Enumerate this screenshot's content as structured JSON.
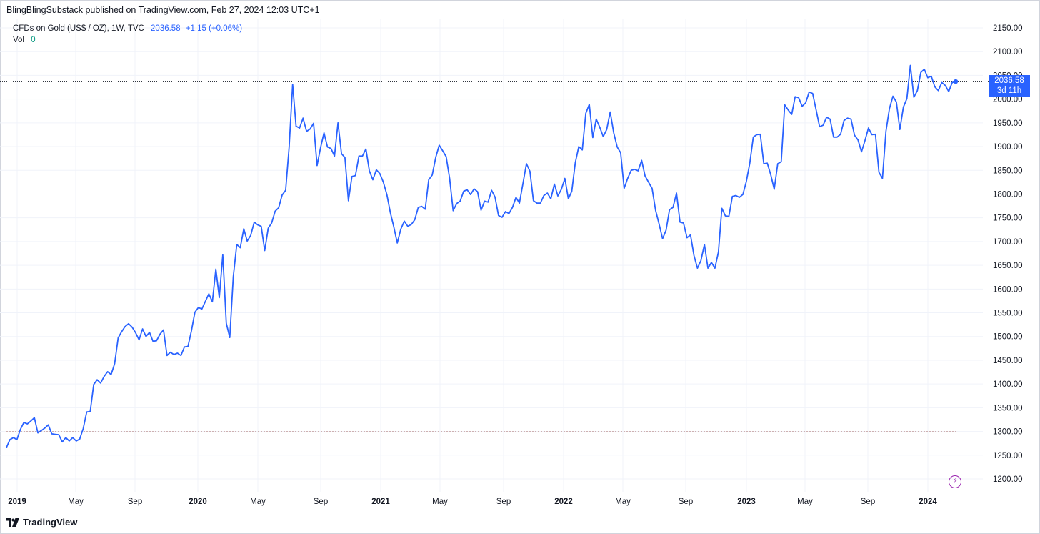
{
  "publisher_line": "BlingBlingSubstack published on TradingView.com, Feb 27, 2024 12:03 UTC+1",
  "legend": {
    "symbol": "CFDs on Gold (US$ / OZ), 1W, TVC",
    "last": "2036.58",
    "change": "+1.15 (+0.06%)",
    "vol_label": "Vol",
    "vol_value": "0"
  },
  "price_badge": {
    "price": "2036.58",
    "countdown": "3d 11h"
  },
  "brand": {
    "name": "TradingView"
  },
  "colors": {
    "line": "#2962ff",
    "grid": "#f0f3fa",
    "badge": "#2962ff",
    "up": "#089981",
    "alert": "#9c27b0"
  },
  "icons": {
    "alert": "lightning-alert-icon",
    "logo": "tradingview-logo-icon"
  },
  "chart_data": {
    "type": "line",
    "ylim": [
      1150,
      2160
    ],
    "y_ticks": [
      "1200.00",
      "1250.00",
      "1300.00",
      "1350.00",
      "1400.00",
      "1450.00",
      "1500.00",
      "1550.00",
      "1600.00",
      "1650.00",
      "1700.00",
      "1750.00",
      "1800.00",
      "1850.00",
      "1900.00",
      "1950.00",
      "2000.00",
      "2050.00",
      "2100.00",
      "2150.00"
    ],
    "x_ticks": [
      {
        "label": "2019",
        "bold": true
      },
      {
        "label": "May",
        "bold": false
      },
      {
        "label": "Sep",
        "bold": false
      },
      {
        "label": "2020",
        "bold": true
      },
      {
        "label": "May",
        "bold": false
      },
      {
        "label": "Sep",
        "bold": false
      },
      {
        "label": "2021",
        "bold": true
      },
      {
        "label": "May",
        "bold": false
      },
      {
        "label": "Sep",
        "bold": false
      },
      {
        "label": "2022",
        "bold": true
      },
      {
        "label": "May",
        "bold": false
      },
      {
        "label": "Sep",
        "bold": false
      },
      {
        "label": "2023",
        "bold": true
      },
      {
        "label": "May",
        "bold": false
      },
      {
        "label": "Sep",
        "bold": false
      },
      {
        "label": "2024",
        "bold": true
      }
    ],
    "last_price": 2036.58,
    "reference_price": 1300,
    "series": [
      {
        "values": [
          1266,
          1283,
          1287,
          1283,
          1304,
          1319,
          1316,
          1322,
          1329,
          1297,
          1302,
          1307,
          1314,
          1295,
          1294,
          1293,
          1278,
          1287,
          1280,
          1287,
          1280,
          1284,
          1306,
          1341,
          1342,
          1399,
          1409,
          1402,
          1416,
          1426,
          1420,
          1443,
          1497,
          1510,
          1521,
          1527,
          1520,
          1508,
          1493,
          1516,
          1500,
          1509,
          1490,
          1491,
          1505,
          1514,
          1460,
          1467,
          1462,
          1465,
          1460,
          1478,
          1479,
          1512,
          1551,
          1561,
          1558,
          1574,
          1590,
          1573,
          1642,
          1582,
          1672,
          1528,
          1498,
          1626,
          1694,
          1687,
          1727,
          1701,
          1713,
          1741,
          1735,
          1732,
          1681,
          1728,
          1739,
          1764,
          1771,
          1798,
          1808,
          1899,
          2031,
          1943,
          1939,
          1960,
          1932,
          1937,
          1949,
          1860,
          1897,
          1929,
          1899,
          1896,
          1880,
          1950,
          1885,
          1877,
          1786,
          1837,
          1839,
          1880,
          1880,
          1895,
          1849,
          1830,
          1851,
          1843,
          1825,
          1799,
          1761,
          1731,
          1697,
          1726,
          1743,
          1732,
          1736,
          1746,
          1772,
          1774,
          1768,
          1830,
          1840,
          1877,
          1903,
          1891,
          1879,
          1833,
          1765,
          1780,
          1785,
          1806,
          1809,
          1799,
          1811,
          1805,
          1766,
          1785,
          1783,
          1808,
          1794,
          1755,
          1751,
          1763,
          1759,
          1772,
          1793,
          1781,
          1822,
          1864,
          1848,
          1786,
          1781,
          1781,
          1797,
          1802,
          1790,
          1821,
          1796,
          1810,
          1833,
          1790,
          1806,
          1866,
          1900,
          1893,
          1970,
          1989,
          1919,
          1958,
          1941,
          1921,
          1936,
          1973,
          1929,
          1899,
          1887,
          1812,
          1833,
          1850,
          1852,
          1849,
          1871,
          1838,
          1825,
          1812,
          1766,
          1737,
          1706,
          1724,
          1767,
          1772,
          1802,
          1741,
          1739,
          1708,
          1714,
          1671,
          1644,
          1660,
          1694,
          1644,
          1656,
          1644,
          1678,
          1770,
          1754,
          1753,
          1795,
          1797,
          1793,
          1799,
          1826,
          1865,
          1920,
          1925,
          1926,
          1864,
          1865,
          1841,
          1810,
          1864,
          1868,
          1988,
          1977,
          1968,
          2005,
          2003,
          1985,
          1992,
          2015,
          2012,
          1977,
          1942,
          1945,
          1962,
          1958,
          1920,
          1920,
          1926,
          1955,
          1960,
          1958,
          1924,
          1914,
          1889,
          1913,
          1939,
          1925,
          1926,
          1846,
          1833,
          1932,
          1980,
          2006,
          1994,
          1936,
          1983,
          2001,
          2071,
          2004,
          2018,
          2056,
          2063,
          2045,
          2048,
          2026,
          2018,
          2035,
          2029,
          2016,
          2035,
          2037
        ]
      }
    ]
  }
}
